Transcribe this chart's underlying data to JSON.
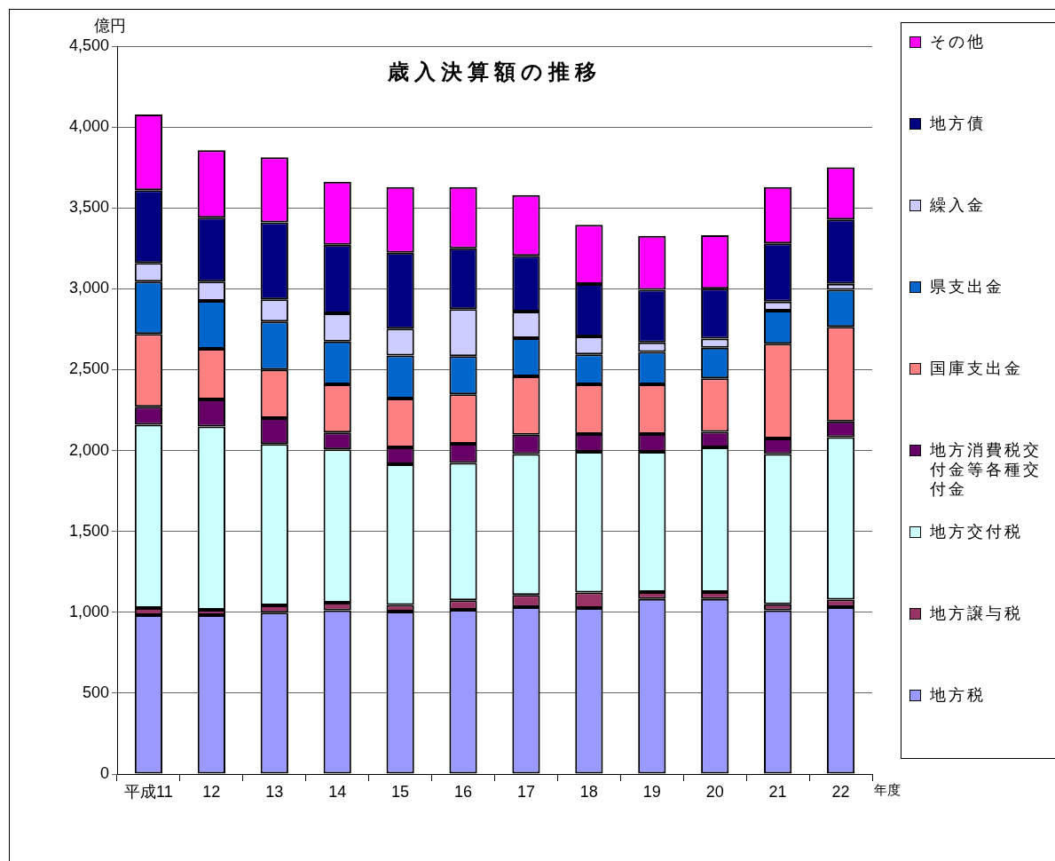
{
  "chart_data": {
    "type": "bar",
    "title": "歳入決算額の推移",
    "xlabel": "年度",
    "ylabel": "億円",
    "categories": [
      "平成11",
      "12",
      "13",
      "14",
      "15",
      "16",
      "17",
      "18",
      "19",
      "20",
      "21",
      "22"
    ],
    "stacked": true,
    "ylim": [
      0,
      4500
    ],
    "yticks": [
      0,
      500,
      {
        "value": 1000,
        "label": "1,000"
      },
      {
        "value": 1500,
        "label": "1,500"
      },
      {
        "value": 2000,
        "label": "2,000"
      },
      {
        "value": 2500,
        "label": "2,500"
      },
      {
        "value": 3000,
        "label": "3,000"
      },
      {
        "value": 3500,
        "label": "3,500"
      },
      {
        "value": 4000,
        "label": "4,000"
      },
      {
        "value": 4500,
        "label": "4,500"
      }
    ],
    "grid": "y",
    "legend": "right",
    "series": [
      {
        "name": "地方税",
        "color": "#9999ff",
        "values": [
          982,
          982,
          997,
          1013,
          1004,
          1015,
          1032,
          1026,
          1083,
          1083,
          1013,
          1032
        ]
      },
      {
        "name": "地方譲与税",
        "color": "#993366",
        "values": [
          44,
          33,
          46,
          46,
          42,
          59,
          75,
          96,
          42,
          42,
          37,
          46
        ]
      },
      {
        "name": "地方交付税",
        "color": "#ccffff",
        "values": [
          1134,
          1134,
          997,
          948,
          869,
          850,
          872,
          870,
          867,
          894,
          929,
          1005
        ]
      },
      {
        "name": "地方消費税交付金等各種交付金",
        "color": "#660066",
        "values": [
          110,
          167,
          161,
          104,
          104,
          118,
          119,
          110,
          110,
          97,
          95,
          97
        ]
      },
      {
        "name": "国庫支出金",
        "color": "#ff8080",
        "values": [
          450,
          312,
          299,
          298,
          302,
          306,
          360,
          307,
          307,
          330,
          586,
          585
        ]
      },
      {
        "name": "県支出金",
        "color": "#0066cc",
        "values": [
          325,
          297,
          297,
          265,
          266,
          235,
          236,
          186,
          201,
          190,
          204,
          229
        ]
      },
      {
        "name": "繰入金",
        "color": "#ccccff",
        "values": [
          114,
          119,
          138,
          174,
          166,
          291,
          165,
          110,
          59,
          56,
          57,
          37
        ]
      },
      {
        "name": "地方債",
        "color": "#000080",
        "values": [
          451,
          396,
          475,
          424,
          470,
          376,
          345,
          324,
          325,
          309,
          360,
          397
        ]
      },
      {
        "name": "その他",
        "color": "#ff00ff",
        "values": [
          467,
          417,
          403,
          390,
          406,
          379,
          376,
          367,
          333,
          330,
          348,
          323
        ]
      }
    ]
  }
}
